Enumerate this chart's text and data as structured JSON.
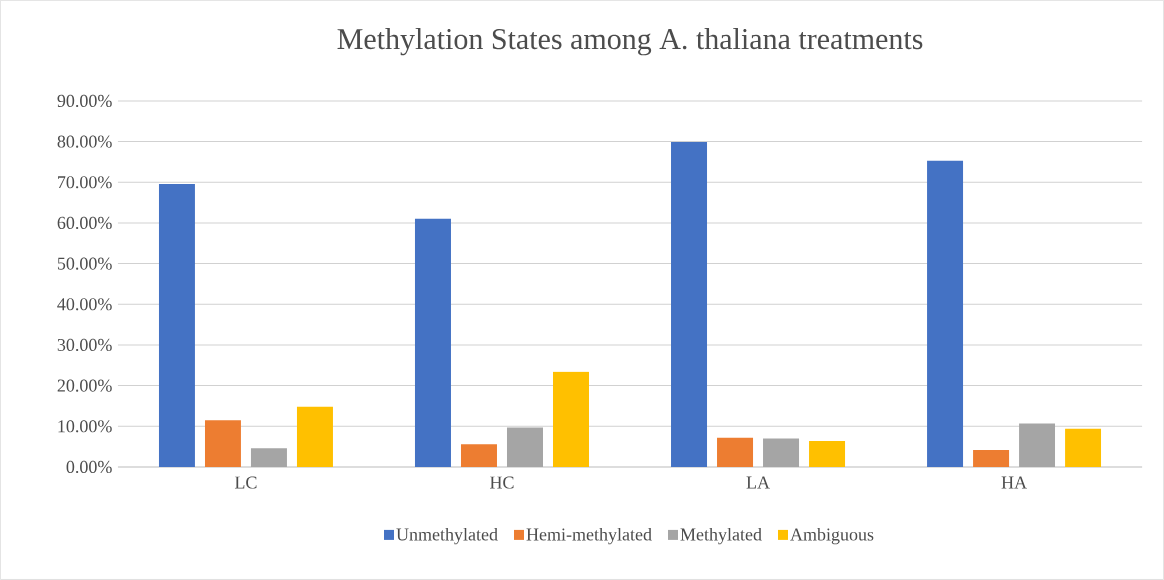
{
  "chart_data": {
    "type": "bar",
    "title": "Methylation States among A. thaliana treatments",
    "categories": [
      "LC",
      "HC",
      "LA",
      "HA"
    ],
    "series": [
      {
        "name": "Unmethylated",
        "color": "#4472c4",
        "values": [
          69.6,
          61.0,
          79.9,
          75.3
        ]
      },
      {
        "name": "Hemi-methylated",
        "color": "#ed7d31",
        "values": [
          11.5,
          5.6,
          7.2,
          4.2
        ]
      },
      {
        "name": "Methylated",
        "color": "#a5a5a5",
        "values": [
          4.6,
          9.7,
          7.0,
          10.7
        ]
      },
      {
        "name": "Ambiguous",
        "color": "#ffc000",
        "values": [
          14.8,
          23.4,
          6.4,
          9.4
        ]
      }
    ],
    "ylim": [
      0,
      90
    ],
    "yticks": [
      {
        "value": 0,
        "label": "0.00%"
      },
      {
        "value": 10,
        "label": "10.00%"
      },
      {
        "value": 20,
        "label": "20.00%"
      },
      {
        "value": 30,
        "label": "30.00%"
      },
      {
        "value": 40,
        "label": "40.00%"
      },
      {
        "value": 50,
        "label": "50.00%"
      },
      {
        "value": 60,
        "label": "60.00%"
      },
      {
        "value": 70,
        "label": "70.00%"
      },
      {
        "value": 80,
        "label": "80.00%"
      },
      {
        "value": 90,
        "label": "90.00%"
      }
    ],
    "grid": "y",
    "legend": "bottom"
  }
}
